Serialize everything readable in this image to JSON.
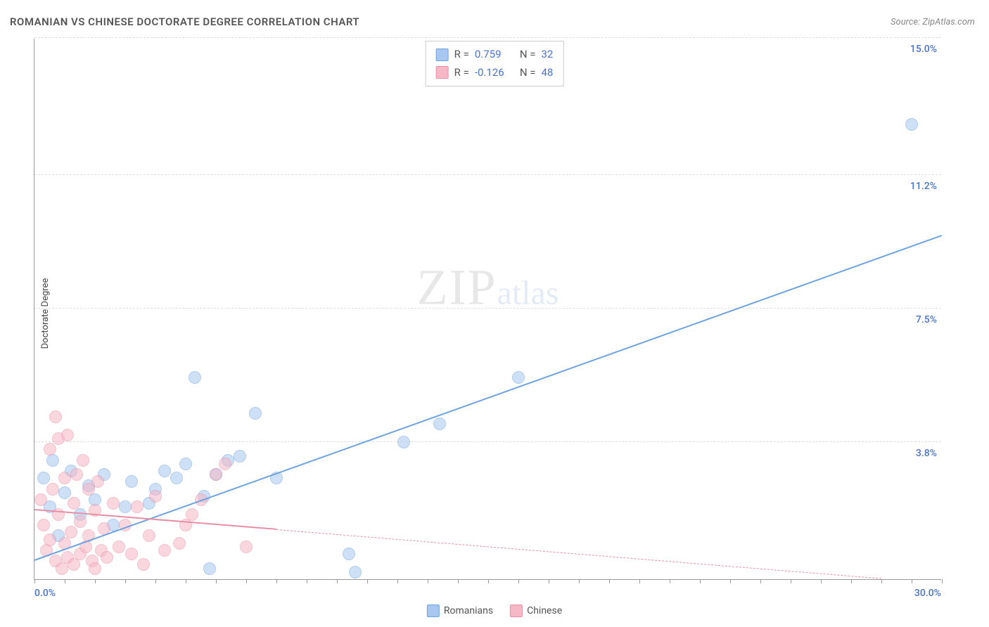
{
  "title": "ROMANIAN VS CHINESE DOCTORATE DEGREE CORRELATION CHART",
  "source": "Source: ZipAtlas.com",
  "ylabel": "Doctorate Degree",
  "watermark": {
    "zip": "ZIP",
    "atlas": "atlas"
  },
  "chart": {
    "type": "scatter",
    "xlim": [
      0,
      30
    ],
    "ylim": [
      0,
      15
    ],
    "x_tick_step": 1,
    "y_gridlines": [
      3.8,
      7.5,
      11.2,
      15.0
    ],
    "y_tick_labels": [
      "3.8%",
      "7.5%",
      "11.2%",
      "15.0%"
    ],
    "x_min_label": "0.0%",
    "x_max_label": "30.0%",
    "background_color": "#ffffff",
    "grid_color": "#dddddd",
    "axis_color": "#999999",
    "axis_label_color": "#4a74c9",
    "title_color": "#555555",
    "title_fontsize": 15,
    "label_fontsize": 13,
    "tick_fontsize": 14,
    "marker_radius": 9
  },
  "series": [
    {
      "name": "Romanians",
      "color_fill": "#a7c7f0",
      "color_stroke": "#6fa3e0",
      "R": "0.759",
      "N": "32",
      "trend": {
        "x1": 0.0,
        "y1": 0.5,
        "x2": 30.0,
        "y2": 9.5,
        "solid_until_x": 30.0
      },
      "points": [
        [
          0.3,
          2.8
        ],
        [
          0.5,
          2.0
        ],
        [
          0.6,
          3.3
        ],
        [
          0.8,
          1.2
        ],
        [
          1.0,
          2.4
        ],
        [
          1.2,
          3.0
        ],
        [
          1.5,
          1.8
        ],
        [
          1.8,
          2.6
        ],
        [
          2.0,
          2.2
        ],
        [
          2.3,
          2.9
        ],
        [
          2.6,
          1.5
        ],
        [
          3.0,
          2.0
        ],
        [
          3.2,
          2.7
        ],
        [
          3.8,
          2.1
        ],
        [
          4.0,
          2.5
        ],
        [
          4.3,
          3.0
        ],
        [
          4.7,
          2.8
        ],
        [
          5.0,
          3.2
        ],
        [
          5.3,
          5.6
        ],
        [
          5.6,
          2.3
        ],
        [
          5.8,
          0.3
        ],
        [
          6.0,
          2.9
        ],
        [
          6.4,
          3.3
        ],
        [
          6.8,
          3.4
        ],
        [
          7.3,
          4.6
        ],
        [
          8.0,
          2.8
        ],
        [
          10.4,
          0.7
        ],
        [
          10.6,
          0.2
        ],
        [
          12.2,
          3.8
        ],
        [
          13.4,
          4.3
        ],
        [
          16.0,
          5.6
        ],
        [
          29.0,
          12.6
        ]
      ]
    },
    {
      "name": "Chinese",
      "color_fill": "#f6b8c6",
      "color_stroke": "#e98fa5",
      "R": "-0.126",
      "N": "48",
      "trend": {
        "x1": 0.0,
        "y1": 1.9,
        "x2": 28.0,
        "y2": 0.0,
        "solid_until_x": 8.0
      },
      "points": [
        [
          0.2,
          2.2
        ],
        [
          0.3,
          1.5
        ],
        [
          0.4,
          0.8
        ],
        [
          0.5,
          3.6
        ],
        [
          0.5,
          1.1
        ],
        [
          0.6,
          2.5
        ],
        [
          0.7,
          0.5
        ],
        [
          0.7,
          4.5
        ],
        [
          0.8,
          1.8
        ],
        [
          0.8,
          3.9
        ],
        [
          0.9,
          0.3
        ],
        [
          1.0,
          2.8
        ],
        [
          1.0,
          1.0
        ],
        [
          1.1,
          0.6
        ],
        [
          1.1,
          4.0
        ],
        [
          1.2,
          1.3
        ],
        [
          1.3,
          2.1
        ],
        [
          1.3,
          0.4
        ],
        [
          1.4,
          2.9
        ],
        [
          1.5,
          1.6
        ],
        [
          1.5,
          0.7
        ],
        [
          1.6,
          3.3
        ],
        [
          1.7,
          0.9
        ],
        [
          1.8,
          2.5
        ],
        [
          1.8,
          1.2
        ],
        [
          1.9,
          0.5
        ],
        [
          2.0,
          1.9
        ],
        [
          2.0,
          0.3
        ],
        [
          2.1,
          2.7
        ],
        [
          2.2,
          0.8
        ],
        [
          2.3,
          1.4
        ],
        [
          2.4,
          0.6
        ],
        [
          2.6,
          2.1
        ],
        [
          2.8,
          0.9
        ],
        [
          3.0,
          1.5
        ],
        [
          3.2,
          0.7
        ],
        [
          3.4,
          2.0
        ],
        [
          3.6,
          0.4
        ],
        [
          3.8,
          1.2
        ],
        [
          4.0,
          2.3
        ],
        [
          4.3,
          0.8
        ],
        [
          4.8,
          1.0
        ],
        [
          5.0,
          1.5
        ],
        [
          5.2,
          1.8
        ],
        [
          5.5,
          2.2
        ],
        [
          6.0,
          2.9
        ],
        [
          6.3,
          3.2
        ],
        [
          7.0,
          0.9
        ]
      ]
    }
  ],
  "legend_top": {
    "r_label": "R =",
    "n_label": "N =",
    "value_color": "#4a74c9",
    "border_color": "#cccccc"
  },
  "legend_bottom": [
    {
      "label": "Romanians",
      "fill": "#a7c7f0",
      "stroke": "#6fa3e0"
    },
    {
      "label": "Chinese",
      "fill": "#f6b8c6",
      "stroke": "#e98fa5"
    }
  ]
}
